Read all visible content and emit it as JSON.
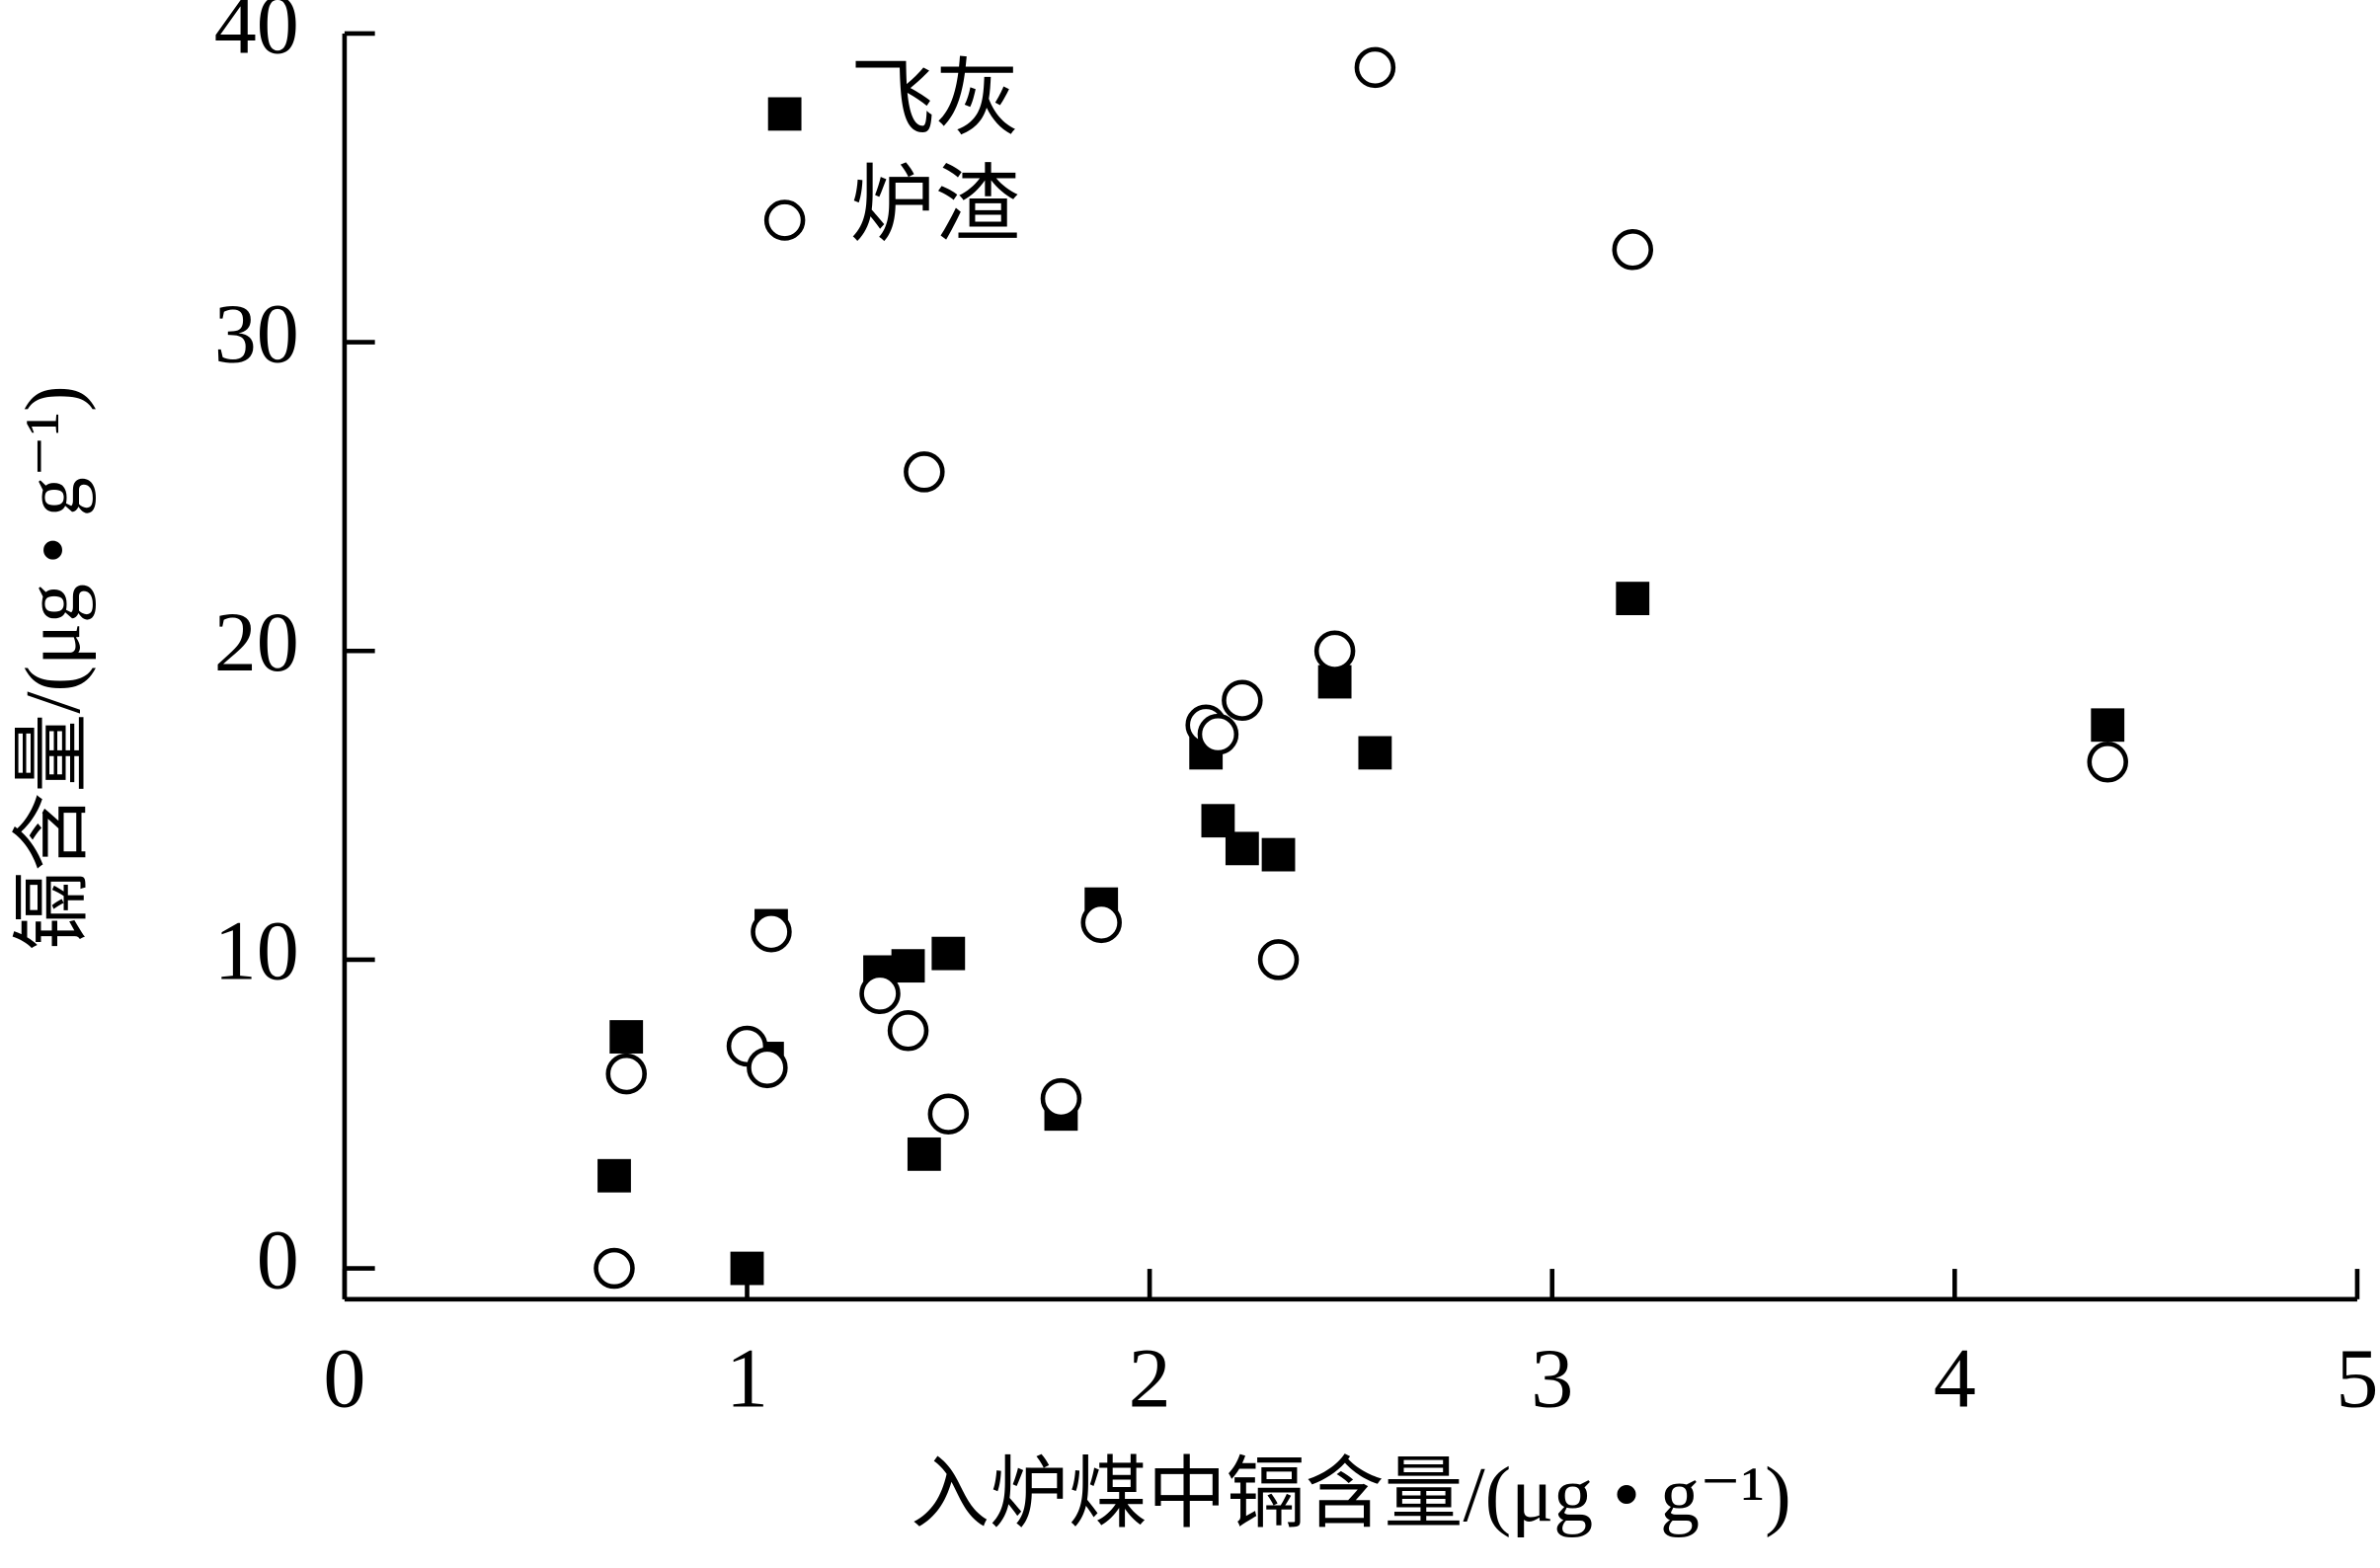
{
  "chart_data": {
    "type": "scatter",
    "x_label": "入炉煤中镉含量/(μg • g⁻¹)",
    "y_label": "镉含量/(μg • g⁻¹)",
    "xlim": [
      0,
      5
    ],
    "xticks": [
      0,
      1,
      2,
      3,
      4,
      5
    ],
    "ylim": [
      -1,
      40
    ],
    "yticks": [
      0,
      10,
      20,
      30,
      40
    ],
    "legend": "upper left",
    "series": [
      {
        "name": "飞灰",
        "marker": "square",
        "color": "#000000",
        "x": [
          0.67,
          0.7,
          1.0,
          1.05,
          1.06,
          1.33,
          1.4,
          1.5,
          1.44,
          1.78,
          1.88,
          2.14,
          2.17,
          2.23,
          2.32,
          2.46,
          2.56,
          3.2,
          4.38
        ],
        "values": [
          3.0,
          7.5,
          0,
          6.8,
          11.1,
          9.6,
          9.8,
          10.2,
          3.7,
          5.0,
          11.8,
          16.7,
          14.5,
          13.6,
          13.4,
          19.0,
          16.7,
          21.7,
          17.6
        ]
      },
      {
        "name": "炉渣",
        "marker": "circle",
        "color": "#000000",
        "x": [
          0.67,
          0.7,
          1.0,
          1.05,
          1.06,
          1.33,
          1.4,
          1.44,
          1.5,
          1.78,
          1.88,
          2.14,
          2.17,
          2.23,
          2.32,
          2.46,
          2.56,
          3.2,
          4.38
        ],
        "values": [
          0,
          6.3,
          7.2,
          6.5,
          10.9,
          8.9,
          7.7,
          25.8,
          5.0,
          5.5,
          11.2,
          17.6,
          17.3,
          18.4,
          10.0,
          20.0,
          38.9,
          33.0,
          16.4
        ]
      }
    ]
  }
}
